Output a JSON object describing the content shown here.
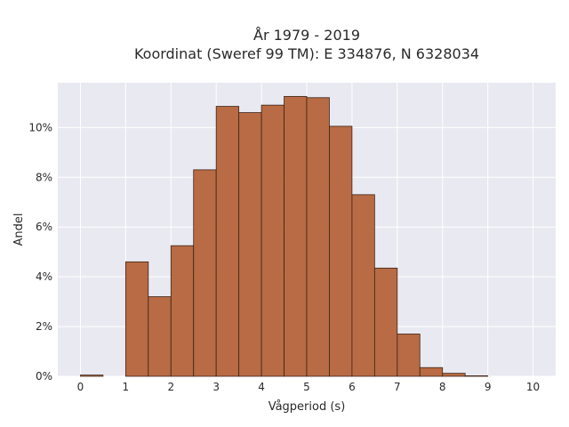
{
  "chart_data": {
    "type": "bar",
    "title_line1": "År 1979 - 2019",
    "title_line2": "Koordinat (Sweref 99 TM): E 334876, N 6328034",
    "xlabel": "Vågperiod (s)",
    "ylabel": "Andel",
    "x_ticks": [
      "0",
      "1",
      "2",
      "3",
      "4",
      "5",
      "6",
      "7",
      "8",
      "9",
      "10"
    ],
    "y_ticks": [
      "0%",
      "2%",
      "4%",
      "6%",
      "8%",
      "10%"
    ],
    "xlim": [
      -0.5,
      10.5
    ],
    "ylim": [
      0,
      11.8
    ],
    "bin_width": 0.5,
    "bins": [
      {
        "start": 0.0,
        "value": 0.05
      },
      {
        "start": 0.5,
        "value": 0.0
      },
      {
        "start": 1.0,
        "value": 4.6
      },
      {
        "start": 1.5,
        "value": 3.2
      },
      {
        "start": 2.0,
        "value": 5.25
      },
      {
        "start": 2.5,
        "value": 8.3
      },
      {
        "start": 3.0,
        "value": 10.85
      },
      {
        "start": 3.5,
        "value": 10.6
      },
      {
        "start": 4.0,
        "value": 10.9
      },
      {
        "start": 4.5,
        "value": 11.25
      },
      {
        "start": 5.0,
        "value": 11.2
      },
      {
        "start": 5.5,
        "value": 10.05
      },
      {
        "start": 6.0,
        "value": 7.3
      },
      {
        "start": 6.5,
        "value": 4.35
      },
      {
        "start": 7.0,
        "value": 1.7
      },
      {
        "start": 7.5,
        "value": 0.35
      },
      {
        "start": 8.0,
        "value": 0.12
      },
      {
        "start": 8.5,
        "value": 0.02
      },
      {
        "start": 9.0,
        "value": 0.0
      },
      {
        "start": 9.5,
        "value": 0.0
      }
    ],
    "grid": true,
    "colors": {
      "bar_fill": "#b5643a",
      "bar_stroke": "#3d2418",
      "plot_background": "#e9e9f1",
      "grid": "#ffffff"
    }
  }
}
